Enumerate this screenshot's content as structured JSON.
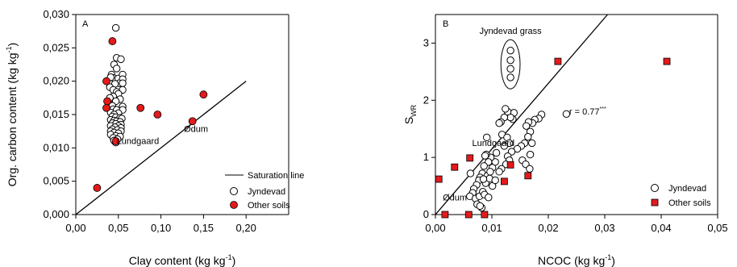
{
  "chart_data": [
    {
      "type": "scatter",
      "panel_label": "A",
      "xlabel": "Clay content (kg kg",
      "xlabel_sup": "-1",
      "xlabel_end": ")",
      "ylabel": "Org. carbon content (kg kg",
      "ylabel_sup": "-1",
      "ylabel_end": ")",
      "xlim": [
        0,
        0.25
      ],
      "ylim": [
        0,
        0.03
      ],
      "x_ticks": [
        "0,00",
        "0,05",
        "0,10",
        "0,15",
        "0,20"
      ],
      "x_tick_values": [
        0,
        0.05,
        0.1,
        0.15,
        0.2
      ],
      "y_ticks": [
        "0,000",
        "0,005",
        "0,010",
        "0,015",
        "0,020",
        "0,025",
        "0,030"
      ],
      "y_tick_values": [
        0,
        0.005,
        0.01,
        0.015,
        0.02,
        0.025,
        0.03
      ],
      "line": {
        "name": "Saturation line",
        "points": [
          [
            0,
            0
          ],
          [
            0.2,
            0.02
          ]
        ]
      },
      "series": [
        {
          "name": "Jyndevad",
          "marker": "open-circle",
          "points": [
            [
              0.047,
              0.028
            ],
            [
              0.048,
              0.0235
            ],
            [
              0.053,
              0.0233
            ],
            [
              0.045,
              0.0225
            ],
            [
              0.048,
              0.0219
            ],
            [
              0.042,
              0.021
            ],
            [
              0.044,
              0.0205
            ],
            [
              0.041,
              0.0206
            ],
            [
              0.05,
              0.0204
            ],
            [
              0.055,
              0.021
            ],
            [
              0.055,
              0.0203
            ],
            [
              0.051,
              0.0197
            ],
            [
              0.055,
              0.0197
            ],
            [
              0.046,
              0.0196
            ],
            [
              0.04,
              0.0191
            ],
            [
              0.044,
              0.0187
            ],
            [
              0.055,
              0.0187
            ],
            [
              0.048,
              0.0184
            ],
            [
              0.05,
              0.0181
            ],
            [
              0.044,
              0.0177
            ],
            [
              0.04,
              0.0175
            ],
            [
              0.052,
              0.0173
            ],
            [
              0.047,
              0.017
            ],
            [
              0.04,
              0.0165
            ],
            [
              0.043,
              0.0163
            ],
            [
              0.055,
              0.0162
            ],
            [
              0.044,
              0.0158
            ],
            [
              0.048,
              0.0157
            ],
            [
              0.055,
              0.0157
            ],
            [
              0.041,
              0.0153
            ],
            [
              0.05,
              0.0152
            ],
            [
              0.045,
              0.015
            ],
            [
              0.043,
              0.0147
            ],
            [
              0.047,
              0.0146
            ],
            [
              0.052,
              0.0145
            ],
            [
              0.054,
              0.0144
            ],
            [
              0.041,
              0.0142
            ],
            [
              0.045,
              0.0141
            ],
            [
              0.048,
              0.014
            ],
            [
              0.052,
              0.0139
            ],
            [
              0.043,
              0.0137
            ],
            [
              0.047,
              0.0136
            ],
            [
              0.053,
              0.0135
            ],
            [
              0.041,
              0.0133
            ],
            [
              0.05,
              0.0133
            ],
            [
              0.046,
              0.0131
            ],
            [
              0.053,
              0.013
            ],
            [
              0.043,
              0.0128
            ],
            [
              0.049,
              0.0127
            ],
            [
              0.041,
              0.0125
            ],
            [
              0.053,
              0.0125
            ],
            [
              0.045,
              0.0123
            ],
            [
              0.05,
              0.0122
            ],
            [
              0.041,
              0.012
            ],
            [
              0.047,
              0.0118
            ],
            [
              0.052,
              0.0117
            ],
            [
              0.044,
              0.0115
            ],
            [
              0.049,
              0.0113
            ],
            [
              0.045,
              0.0111
            ],
            [
              0.047,
              0.0108
            ]
          ]
        },
        {
          "name": "Other soils",
          "marker": "filled-circle-red",
          "points": [
            [
              0.025,
              0.004
            ],
            [
              0.036,
              0.016
            ],
            [
              0.037,
              0.017
            ],
            [
              0.036,
              0.02
            ],
            [
              0.043,
              0.026
            ],
            [
              0.047,
              0.011
            ],
            [
              0.076,
              0.016
            ],
            [
              0.096,
              0.015
            ],
            [
              0.137,
              0.014
            ],
            [
              0.15,
              0.018
            ]
          ]
        }
      ],
      "annotations": [
        {
          "text": "Lundgaard",
          "x": 0.048,
          "y": 0.0106
        },
        {
          "text": "Ødum",
          "x": 0.127,
          "y": 0.0124
        }
      ],
      "legend": {
        "position": "bottom-right",
        "entries": [
          "Saturation line",
          "Jyndevad",
          "Other soils"
        ]
      }
    },
    {
      "type": "scatter",
      "panel_label": "B",
      "xlabel": "NCOC (kg kg",
      "xlabel_sup": "-1",
      "xlabel_end": ")",
      "ylabel": "S",
      "ylabel_sub": "WR",
      "xlim": [
        0,
        0.05
      ],
      "ylim": [
        0,
        3.5
      ],
      "x_ticks": [
        "0,00",
        "0,01",
        "0,02",
        "0,03",
        "0,04",
        "0,05"
      ],
      "x_tick_values": [
        0,
        0.01,
        0.02,
        0.03,
        0.04,
        0.05
      ],
      "y_ticks": [
        "0",
        "1",
        "2",
        "3"
      ],
      "y_tick_values": [
        0,
        1,
        2,
        3
      ],
      "fit_line": {
        "points": [
          [
            0,
            0
          ],
          [
            0.0305,
            3.5
          ]
        ]
      },
      "fit_label": "r = 0.77",
      "fit_label_sup": "***",
      "fit_label_pos": [
        0.0237,
        1.75
      ],
      "series": [
        {
          "name": "Jyndevad",
          "marker": "open-circle",
          "points": [
            [
              0.0133,
              2.87
            ],
            [
              0.0133,
              2.7
            ],
            [
              0.0133,
              2.55
            ],
            [
              0.0133,
              2.4
            ],
            [
              0.0232,
              1.76
            ],
            [
              0.0188,
              1.75
            ],
            [
              0.0183,
              1.68
            ],
            [
              0.0176,
              1.66
            ],
            [
              0.0172,
              1.6
            ],
            [
              0.0165,
              1.62
            ],
            [
              0.0161,
              1.55
            ],
            [
              0.0168,
              1.45
            ],
            [
              0.0164,
              1.36
            ],
            [
              0.0158,
              1.25
            ],
            [
              0.0152,
              1.2
            ],
            [
              0.0171,
              1.25
            ],
            [
              0.0168,
              1.05
            ],
            [
              0.0154,
              0.95
            ],
            [
              0.016,
              0.88
            ],
            [
              0.0167,
              0.8
            ],
            [
              0.0145,
              1.15
            ],
            [
              0.0139,
              1.78
            ],
            [
              0.0137,
              1.67
            ],
            [
              0.0133,
              1.7
            ],
            [
              0.0128,
              1.8
            ],
            [
              0.0124,
              1.85
            ],
            [
              0.0122,
              1.7
            ],
            [
              0.0116,
              1.62
            ],
            [
              0.0113,
              1.6
            ],
            [
              0.0118,
              1.4
            ],
            [
              0.0127,
              1.35
            ],
            [
              0.0131,
              1.25
            ],
            [
              0.0135,
              1.1
            ],
            [
              0.0128,
              1.02
            ],
            [
              0.0131,
              0.95
            ],
            [
              0.0122,
              1.2
            ],
            [
              0.0125,
              0.88
            ],
            [
              0.0117,
              0.8
            ],
            [
              0.0113,
              0.75
            ],
            [
              0.0108,
              1.08
            ],
            [
              0.0106,
              0.92
            ],
            [
              0.0101,
              0.82
            ],
            [
              0.0098,
              1.0
            ],
            [
              0.0094,
              0.92
            ],
            [
              0.0091,
              1.35
            ],
            [
              0.009,
              1.05
            ],
            [
              0.0088,
              1.03
            ],
            [
              0.0086,
              0.85
            ],
            [
              0.0083,
              0.72
            ],
            [
              0.0079,
              0.65
            ],
            [
              0.0077,
              0.6
            ],
            [
              0.0073,
              0.52
            ],
            [
              0.0068,
              0.45
            ],
            [
              0.0066,
              0.38
            ],
            [
              0.0062,
              0.72
            ],
            [
              0.0061,
              0.32
            ],
            [
              0.0071,
              0.28
            ],
            [
              0.0078,
              0.32
            ],
            [
              0.0084,
              0.4
            ],
            [
              0.0089,
              0.55
            ],
            [
              0.0092,
              0.68
            ],
            [
              0.0096,
              0.63
            ],
            [
              0.0074,
              0.18
            ],
            [
              0.0082,
              0.12
            ],
            [
              0.0087,
              0.35
            ],
            [
              0.0094,
              0.3
            ],
            [
              0.0101,
              0.5
            ],
            [
              0.0106,
              0.6
            ],
            [
              0.0097,
              0.75
            ],
            [
              0.0085,
              0.62
            ],
            [
              0.0079,
              0.15
            ]
          ]
        },
        {
          "name": "Other soils",
          "marker": "filled-square-red",
          "points": [
            [
              0.0217,
              2.68
            ],
            [
              0.041,
              2.68
            ],
            [
              0.0061,
              0.99
            ],
            [
              0.0034,
              0.83
            ],
            [
              0.0006,
              0.62
            ],
            [
              0.0133,
              0.87
            ],
            [
              0.0164,
              0.68
            ],
            [
              0.0122,
              0.58
            ],
            [
              0.0087,
              0.0
            ],
            [
              0.0059,
              0.0
            ],
            [
              0.0017,
              0.0
            ]
          ]
        }
      ],
      "group_ellipse": {
        "label": "Jyndevad grass",
        "cx": 0.0133,
        "cy": 2.63,
        "rx": 0.0017,
        "ry": 0.43
      },
      "annotations": [
        {
          "text": "Lundgaard",
          "x": 0.0065,
          "y": 1.2
        },
        {
          "text": "Ødum",
          "x": 0.0013,
          "y": 0.25
        }
      ],
      "legend": {
        "position": "bottom-right",
        "entries": [
          "Jyndevad",
          "Other soils"
        ]
      }
    }
  ]
}
